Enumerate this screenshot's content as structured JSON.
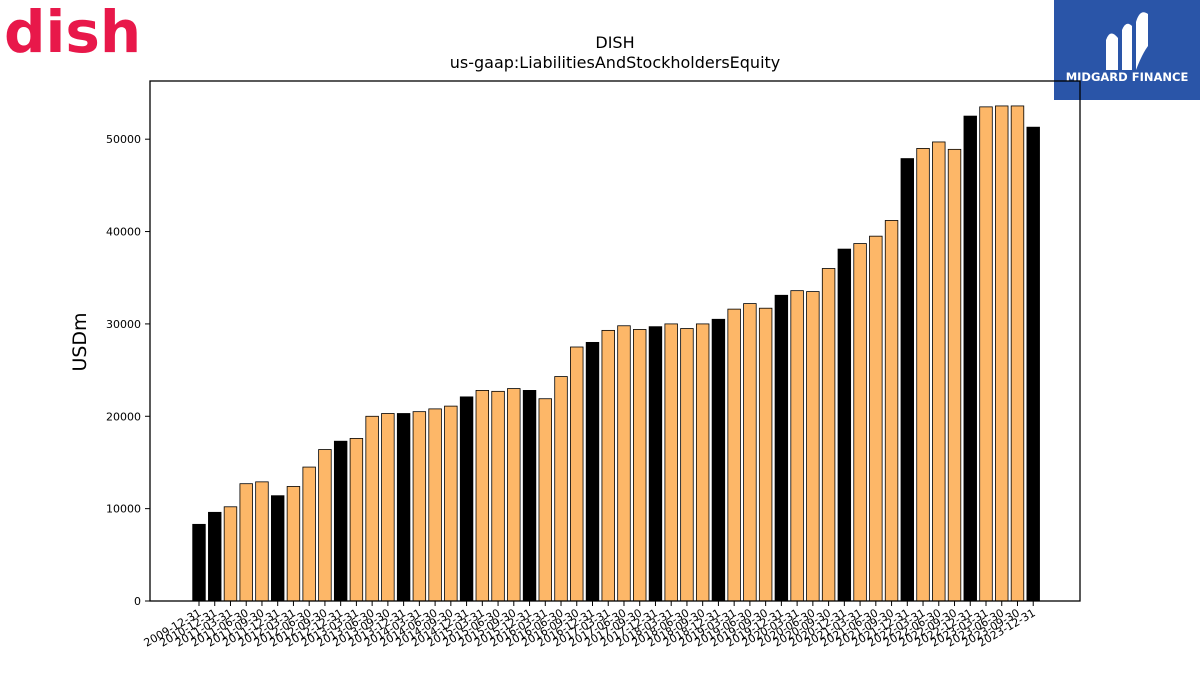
{
  "branding": {
    "left_logo_text": "dish",
    "left_logo_color": "#e8184a",
    "right_logo_text": "MIDGARD FINANCE",
    "right_logo_bg": "#2a55a8"
  },
  "chart_data": {
    "type": "bar",
    "title": "DISH",
    "subtitle": "us-gaap:LiabilitiesAndStockholdersEquity",
    "xlabel": "",
    "ylabel": "USDm",
    "ylim": [
      0,
      56300
    ],
    "yticks": [
      0,
      10000,
      20000,
      30000,
      40000,
      50000
    ],
    "colors": {
      "annual": "#000000",
      "quarter": "#fdb768"
    },
    "categories": [
      "2009-12-31",
      "2010-12-31",
      "2011-03-31",
      "2011-06-30",
      "2011-09-30",
      "2011-12-31",
      "2012-03-31",
      "2012-06-30",
      "2012-09-30",
      "2012-12-31",
      "2013-03-31",
      "2013-06-30",
      "2013-09-30",
      "2013-12-31",
      "2014-03-31",
      "2014-06-30",
      "2014-09-30",
      "2014-12-31",
      "2015-03-31",
      "2015-06-30",
      "2015-09-30",
      "2015-12-31",
      "2016-03-31",
      "2016-06-30",
      "2016-09-30",
      "2016-12-31",
      "2017-03-31",
      "2017-06-30",
      "2017-09-30",
      "2017-12-31",
      "2018-03-31",
      "2018-06-30",
      "2018-09-30",
      "2018-12-31",
      "2019-03-31",
      "2019-06-30",
      "2019-09-30",
      "2019-12-31",
      "2020-03-31",
      "2020-06-30",
      "2020-09-30",
      "2020-12-31",
      "2021-03-31",
      "2021-06-30",
      "2021-09-30",
      "2021-12-31",
      "2022-03-31",
      "2022-06-30",
      "2022-09-30",
      "2022-12-31",
      "2023-03-31",
      "2023-06-30",
      "2023-09-30",
      "2023-12-31"
    ],
    "values": [
      8300,
      9600,
      10200,
      12700,
      12900,
      11400,
      12400,
      14500,
      16400,
      17300,
      17600,
      20000,
      20300,
      20300,
      20500,
      20800,
      21100,
      22100,
      22800,
      22700,
      23000,
      22800,
      21900,
      24300,
      27500,
      28000,
      29300,
      29800,
      29400,
      29700,
      30000,
      29500,
      30000,
      30500,
      31600,
      32200,
      31700,
      33100,
      33600,
      33500,
      36000,
      38100,
      38700,
      39500,
      41200,
      47900,
      49000,
      49700,
      48900,
      52500,
      53500,
      53600,
      53600,
      51300
    ],
    "annual": [
      true,
      true,
      false,
      false,
      false,
      true,
      false,
      false,
      false,
      true,
      false,
      false,
      false,
      true,
      false,
      false,
      false,
      true,
      false,
      false,
      false,
      true,
      false,
      false,
      false,
      true,
      false,
      false,
      false,
      true,
      false,
      false,
      false,
      true,
      false,
      false,
      false,
      true,
      false,
      false,
      false,
      true,
      false,
      false,
      false,
      true,
      false,
      false,
      false,
      true,
      false,
      false,
      false,
      true
    ]
  }
}
